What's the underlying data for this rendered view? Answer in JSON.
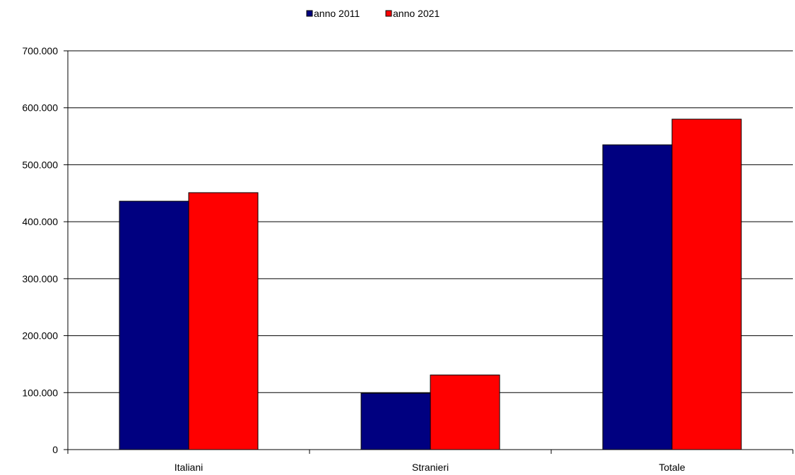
{
  "chart_data": {
    "type": "bar",
    "categories": [
      "Italiani",
      "Stranieri",
      "Totale"
    ],
    "series": [
      {
        "name": "anno 2011",
        "color": "#000080",
        "values": [
          436000,
          99000,
          535000
        ]
      },
      {
        "name": "anno 2021",
        "color": "#ff0000",
        "values": [
          451000,
          131000,
          580000
        ]
      }
    ],
    "ylim": [
      0,
      700000
    ],
    "yticks": [
      0,
      100000,
      200000,
      300000,
      400000,
      500000,
      600000,
      700000
    ],
    "ytick_labels": [
      "0",
      "100.000",
      "200.000",
      "300.000",
      "400.000",
      "500.000",
      "600.000",
      "700.000"
    ],
    "grid": true,
    "legend_position": "top-center",
    "title": "",
    "xlabel": "",
    "ylabel": ""
  }
}
